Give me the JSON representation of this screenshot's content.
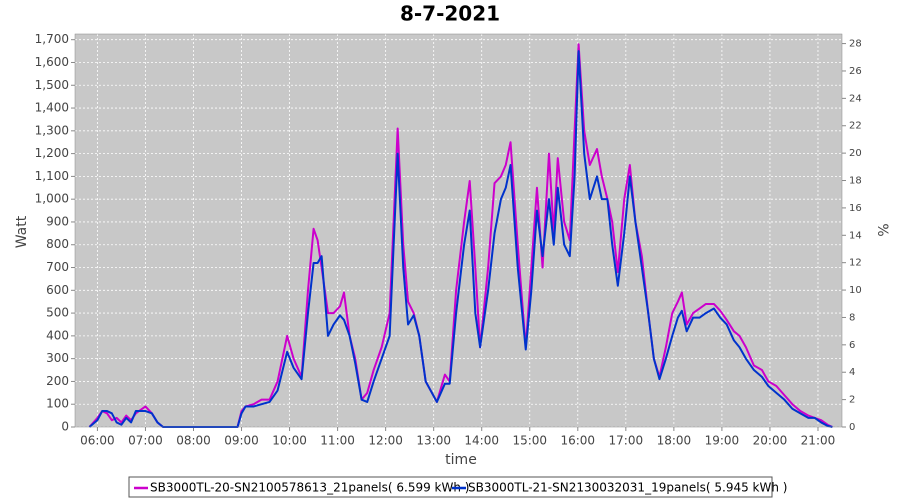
{
  "chart_data": {
    "type": "line",
    "title": "8-7-2021",
    "x_label": "time",
    "y_label": "Watt",
    "y2_label": "%",
    "x": [
      "05:50",
      "06:00",
      "06:06",
      "06:12",
      "06:18",
      "06:24",
      "06:30",
      "06:36",
      "06:42",
      "06:48",
      "07:00",
      "07:08",
      "07:15",
      "07:22",
      "07:40",
      "08:00",
      "08:30",
      "08:55",
      "09:00",
      "09:05",
      "09:15",
      "09:25",
      "09:35",
      "09:45",
      "09:57",
      "10:05",
      "10:15",
      "10:23",
      "10:30",
      "10:35",
      "10:40",
      "10:48",
      "10:55",
      "11:03",
      "11:08",
      "11:15",
      "11:22",
      "11:30",
      "11:37",
      "11:45",
      "11:55",
      "12:05",
      "12:15",
      "12:22",
      "12:28",
      "12:35",
      "12:42",
      "12:50",
      "13:04",
      "13:14",
      "13:20",
      "13:28",
      "13:38",
      "13:45",
      "13:52",
      "13:58",
      "14:08",
      "14:16",
      "14:24",
      "14:30",
      "14:36",
      "14:45",
      "14:55",
      "15:02",
      "15:09",
      "15:16",
      "15:24",
      "15:30",
      "15:35",
      "15:43",
      "15:50",
      "15:56",
      "16:01",
      "16:08",
      "16:15",
      "16:24",
      "16:30",
      "16:37",
      "16:43",
      "16:50",
      "16:58",
      "17:05",
      "17:12",
      "17:20",
      "17:28",
      "17:35",
      "17:42",
      "17:50",
      "17:58",
      "18:05",
      "18:10",
      "18:16",
      "18:24",
      "18:32",
      "18:40",
      "18:50",
      "18:58",
      "19:06",
      "19:15",
      "19:22",
      "19:30",
      "19:40",
      "19:50",
      "19:58",
      "20:08",
      "20:18",
      "20:28",
      "20:38",
      "20:48",
      "20:56",
      "21:04",
      "21:12",
      "21:18"
    ],
    "series": [
      {
        "name": "SB3000TL-20-SN2100578613_21panels( 6.599 kWh )",
        "color": "#cc00cc",
        "values": [
          0,
          40,
          70,
          60,
          30,
          40,
          20,
          50,
          30,
          60,
          90,
          60,
          20,
          0,
          0,
          0,
          0,
          0,
          70,
          90,
          100,
          120,
          120,
          200,
          400,
          300,
          220,
          600,
          870,
          820,
          700,
          500,
          500,
          530,
          590,
          400,
          300,
          120,
          150,
          250,
          350,
          500,
          1310,
          800,
          550,
          500,
          400,
          200,
          110,
          230,
          200,
          600,
          900,
          1080,
          700,
          350,
          700,
          1070,
          1100,
          1150,
          1250,
          800,
          350,
          700,
          1050,
          700,
          1200,
          850,
          1180,
          900,
          820,
          1300,
          1680,
          1300,
          1150,
          1220,
          1100,
          1000,
          900,
          680,
          1000,
          1150,
          900,
          750,
          500,
          300,
          220,
          350,
          500,
          550,
          590,
          450,
          500,
          520,
          540,
          540,
          510,
          470,
          420,
          400,
          350,
          270,
          250,
          200,
          180,
          140,
          100,
          70,
          50,
          40,
          30,
          10,
          0
        ]
      },
      {
        "name": "SB3000TL-21-SN2130032031_19panels( 5.945 kWh )",
        "color": "#0033cc",
        "values": [
          0,
          30,
          70,
          70,
          60,
          20,
          10,
          40,
          20,
          70,
          70,
          60,
          20,
          0,
          0,
          0,
          0,
          0,
          60,
          90,
          90,
          100,
          110,
          160,
          330,
          260,
          210,
          500,
          720,
          720,
          750,
          400,
          450,
          490,
          470,
          400,
          280,
          120,
          110,
          200,
          300,
          400,
          1200,
          700,
          450,
          490,
          400,
          200,
          110,
          190,
          190,
          500,
          800,
          950,
          500,
          350,
          600,
          850,
          1000,
          1050,
          1150,
          700,
          340,
          600,
          950,
          750,
          1000,
          800,
          1050,
          800,
          750,
          1100,
          1650,
          1200,
          1000,
          1100,
          1000,
          1000,
          800,
          620,
          850,
          1100,
          900,
          700,
          500,
          300,
          210,
          300,
          400,
          480,
          510,
          420,
          480,
          480,
          500,
          520,
          480,
          450,
          380,
          350,
          300,
          250,
          220,
          180,
          150,
          120,
          80,
          60,
          40,
          40,
          20,
          5,
          0
        ]
      }
    ],
    "xlim": [
      "05:32",
      "21:30"
    ],
    "xticks": [
      "06:00",
      "07:00",
      "08:00",
      "09:00",
      "10:00",
      "11:00",
      "12:00",
      "13:00",
      "14:00",
      "15:00",
      "16:00",
      "17:00",
      "18:00",
      "19:00",
      "20:00",
      "21:00"
    ],
    "ylim": [
      0,
      1725
    ],
    "yticks": [
      0,
      100,
      200,
      300,
      400,
      500,
      600,
      700,
      800,
      900,
      {
        "value": 1000,
        "label": "1,000"
      },
      {
        "value": 1100,
        "label": "1,100"
      },
      {
        "value": 1200,
        "label": "1,200"
      },
      {
        "value": 1300,
        "label": "1,300"
      },
      {
        "value": 1400,
        "label": "1,400"
      },
      {
        "value": 1500,
        "label": "1,500"
      },
      {
        "value": 1600,
        "label": "1,600"
      },
      {
        "value": 1700,
        "label": "1,700"
      }
    ],
    "y2lim": [
      0,
      28.7
    ],
    "y2ticks": [
      0,
      2,
      4,
      6,
      8,
      10,
      12,
      14,
      16,
      18,
      20,
      22,
      24,
      26,
      28
    ],
    "grid": true,
    "legend": "bottom"
  }
}
